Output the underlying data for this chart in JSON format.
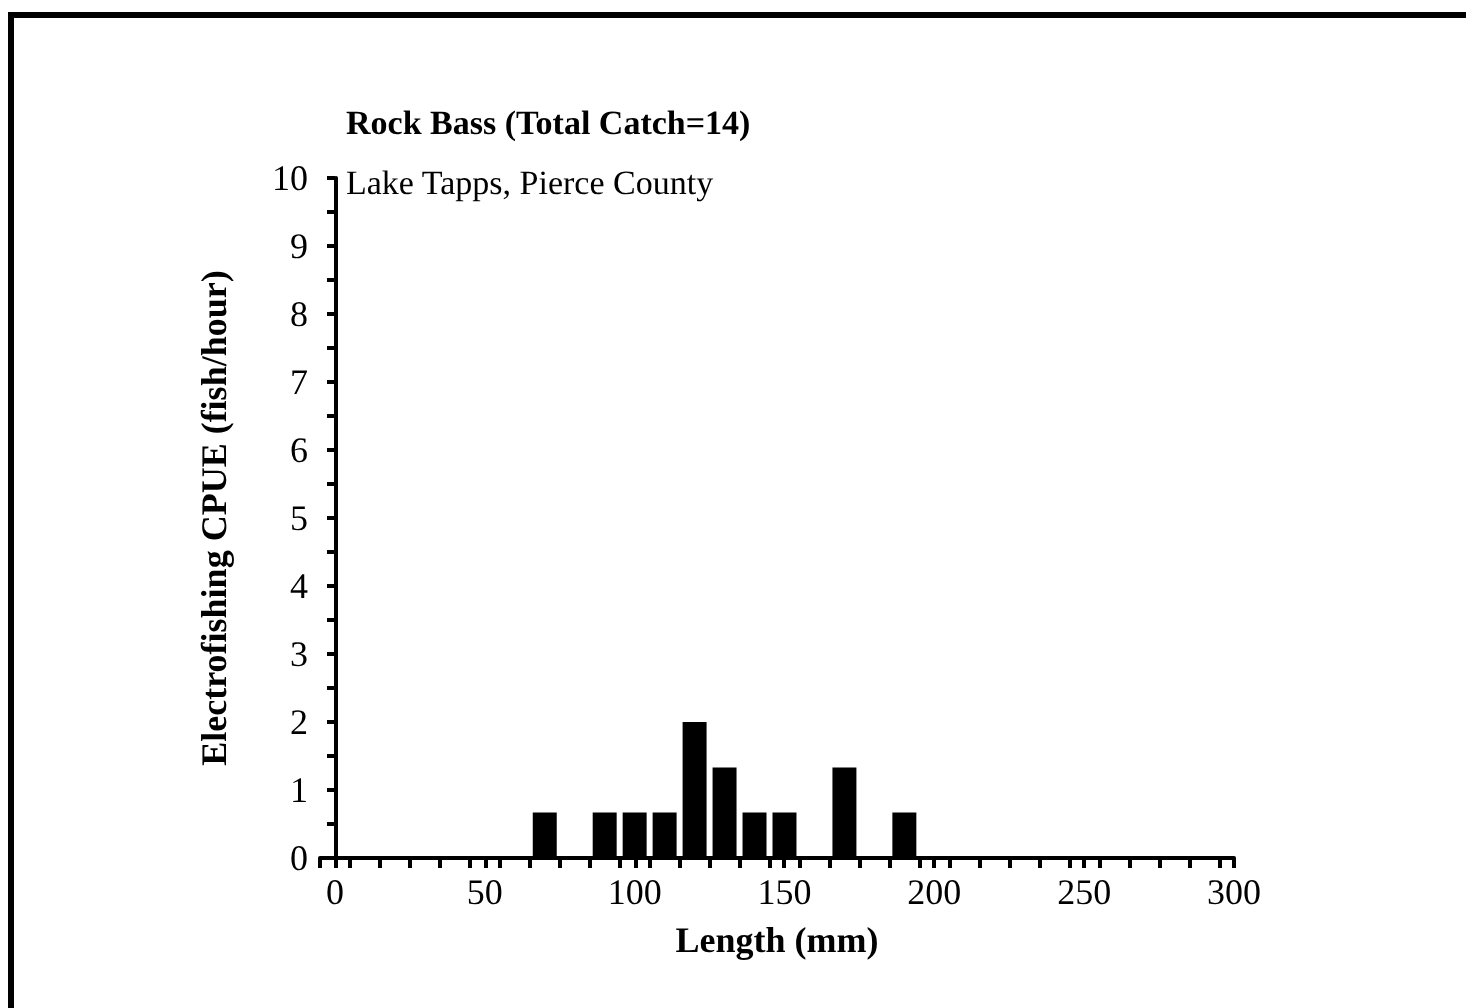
{
  "chart_data": {
    "type": "histogram",
    "title": "Rock Bass (Total Catch=14)",
    "subtitle": "Lake Tapps, Pierce County",
    "xlabel": "Length (mm)",
    "ylabel": "Electrofishing CPUE (fish/hour)",
    "bins": [
      65,
      75,
      85,
      95,
      105,
      115,
      125,
      135,
      145,
      155,
      165,
      175,
      185,
      195
    ],
    "values": [
      0.67,
      0,
      0.67,
      0.67,
      0.67,
      2,
      1.33,
      0.67,
      0.67,
      0,
      1.33,
      0,
      0.67
    ],
    "color": "#000000",
    "xlim": [
      -5,
      300
    ],
    "xticks": [
      0,
      50,
      100,
      150,
      200,
      250,
      300,
      {
        "value": -5,
        "label": null
      },
      {
        "value": 5,
        "label": null
      },
      {
        "value": 15,
        "label": null
      },
      {
        "value": 25,
        "label": null
      },
      {
        "value": 35,
        "label": null
      },
      {
        "value": 45,
        "label": null
      },
      {
        "value": 55,
        "label": null
      },
      {
        "value": 65,
        "label": null
      },
      {
        "value": 75,
        "label": null
      },
      {
        "value": 85,
        "label": null
      },
      {
        "value": 95,
        "label": null
      },
      {
        "value": 105,
        "label": null
      },
      {
        "value": 115,
        "label": null
      },
      {
        "value": 125,
        "label": null
      },
      {
        "value": 135,
        "label": null
      },
      {
        "value": 145,
        "label": null
      },
      {
        "value": 155,
        "label": null
      },
      {
        "value": 165,
        "label": null
      },
      {
        "value": 175,
        "label": null
      },
      {
        "value": 185,
        "label": null
      },
      {
        "value": 195,
        "label": null
      },
      {
        "value": 205,
        "label": null
      },
      {
        "value": 215,
        "label": null
      },
      {
        "value": 225,
        "label": null
      },
      {
        "value": 235,
        "label": null
      },
      {
        "value": 245,
        "label": null
      },
      {
        "value": 255,
        "label": null
      },
      {
        "value": 265,
        "label": null
      },
      {
        "value": 275,
        "label": null
      },
      {
        "value": 285,
        "label": null
      },
      {
        "value": 295,
        "label": null
      }
    ],
    "ylim": [
      0,
      10
    ],
    "yticks": [
      0,
      1,
      2,
      3,
      4,
      5,
      6,
      7,
      8,
      9,
      10,
      {
        "value": 0.5,
        "label": null
      },
      {
        "value": 1.5,
        "label": null
      },
      {
        "value": 2.5,
        "label": null
      },
      {
        "value": 3.5,
        "label": null
      },
      {
        "value": 4.5,
        "label": null
      },
      {
        "value": 5.5,
        "label": null
      },
      {
        "value": 6.5,
        "label": null
      },
      {
        "value": 7.5,
        "label": null
      },
      {
        "value": 8.5,
        "label": null
      },
      {
        "value": 9.5,
        "label": null
      }
    ],
    "grid": false
  }
}
